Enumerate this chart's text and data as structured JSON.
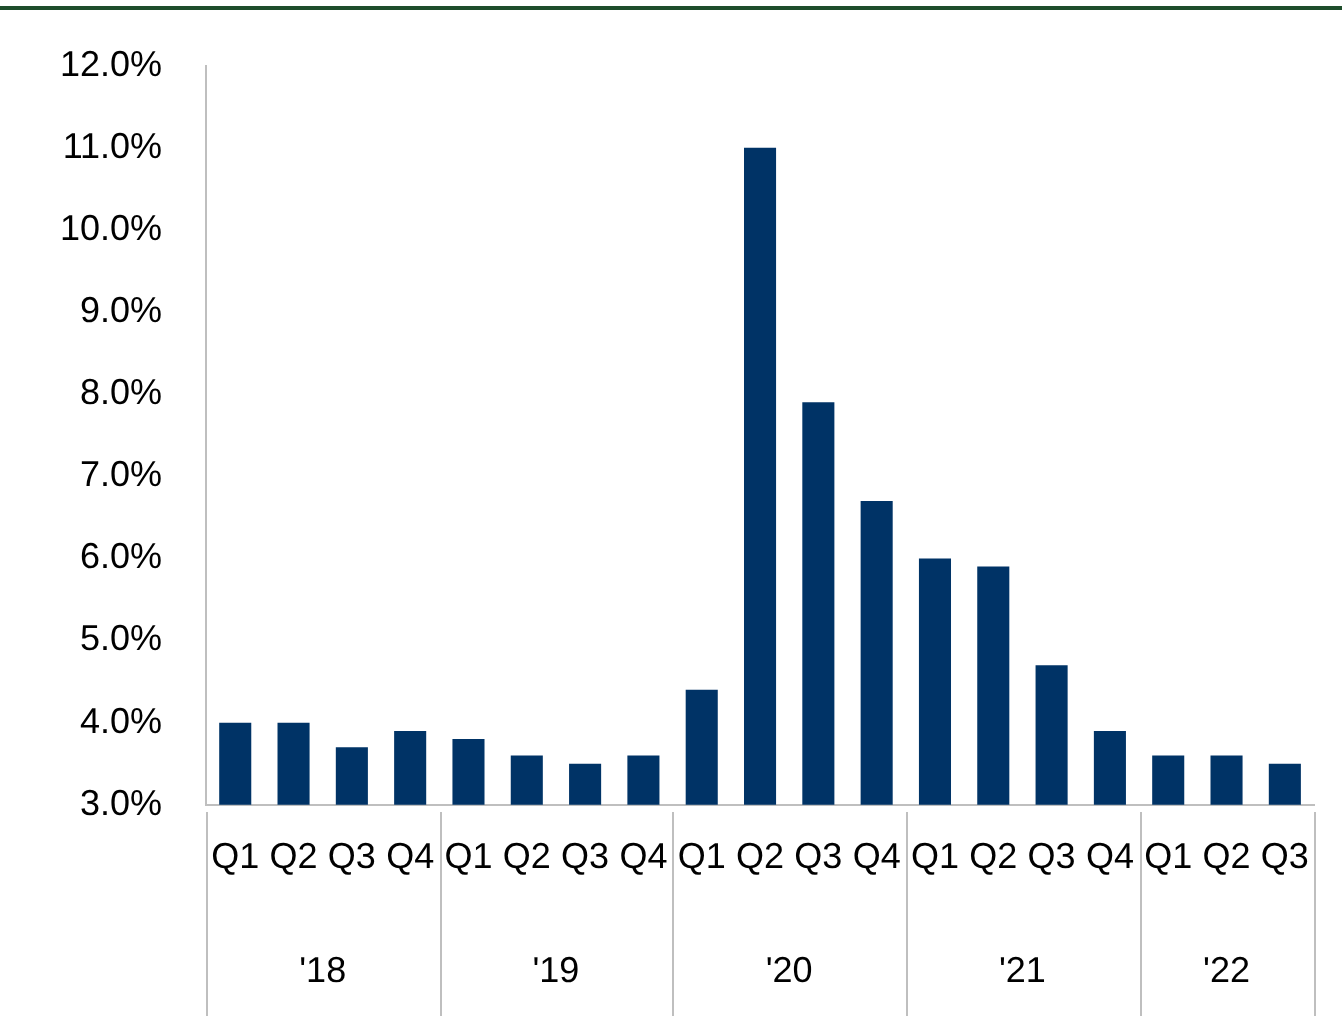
{
  "chart_data": {
    "type": "bar",
    "categories": [
      "Q1",
      "Q2",
      "Q3",
      "Q4",
      "Q1",
      "Q2",
      "Q3",
      "Q4",
      "Q1",
      "Q2",
      "Q3",
      "Q4",
      "Q1",
      "Q2",
      "Q3",
      "Q4",
      "Q1",
      "Q2",
      "Q3"
    ],
    "values": [
      4.0,
      4.0,
      3.7,
      3.9,
      3.8,
      3.6,
      3.5,
      3.6,
      4.4,
      11.0,
      7.9,
      6.7,
      6.0,
      5.9,
      4.7,
      3.9,
      3.6,
      3.6,
      3.5
    ],
    "color": "#003366",
    "ylim": [
      3,
      12
    ],
    "yticks": [
      {
        "value": 3,
        "label": "3.0%"
      },
      {
        "value": 4,
        "label": "4.0%"
      },
      {
        "value": 5,
        "label": "5.0%"
      },
      {
        "value": 6,
        "label": "6.0%"
      },
      {
        "value": 7,
        "label": "7.0%"
      },
      {
        "value": 8,
        "label": "8.0%"
      },
      {
        "value": 9,
        "label": "9.0%"
      },
      {
        "value": 10,
        "label": "10.0%"
      },
      {
        "value": 11,
        "label": "11.0%"
      },
      {
        "value": 12,
        "label": "12.0%"
      }
    ],
    "annotations": [
      "'18",
      "'19",
      "'20",
      "'21",
      "'22"
    ],
    "grid": false,
    "legend": false
  }
}
